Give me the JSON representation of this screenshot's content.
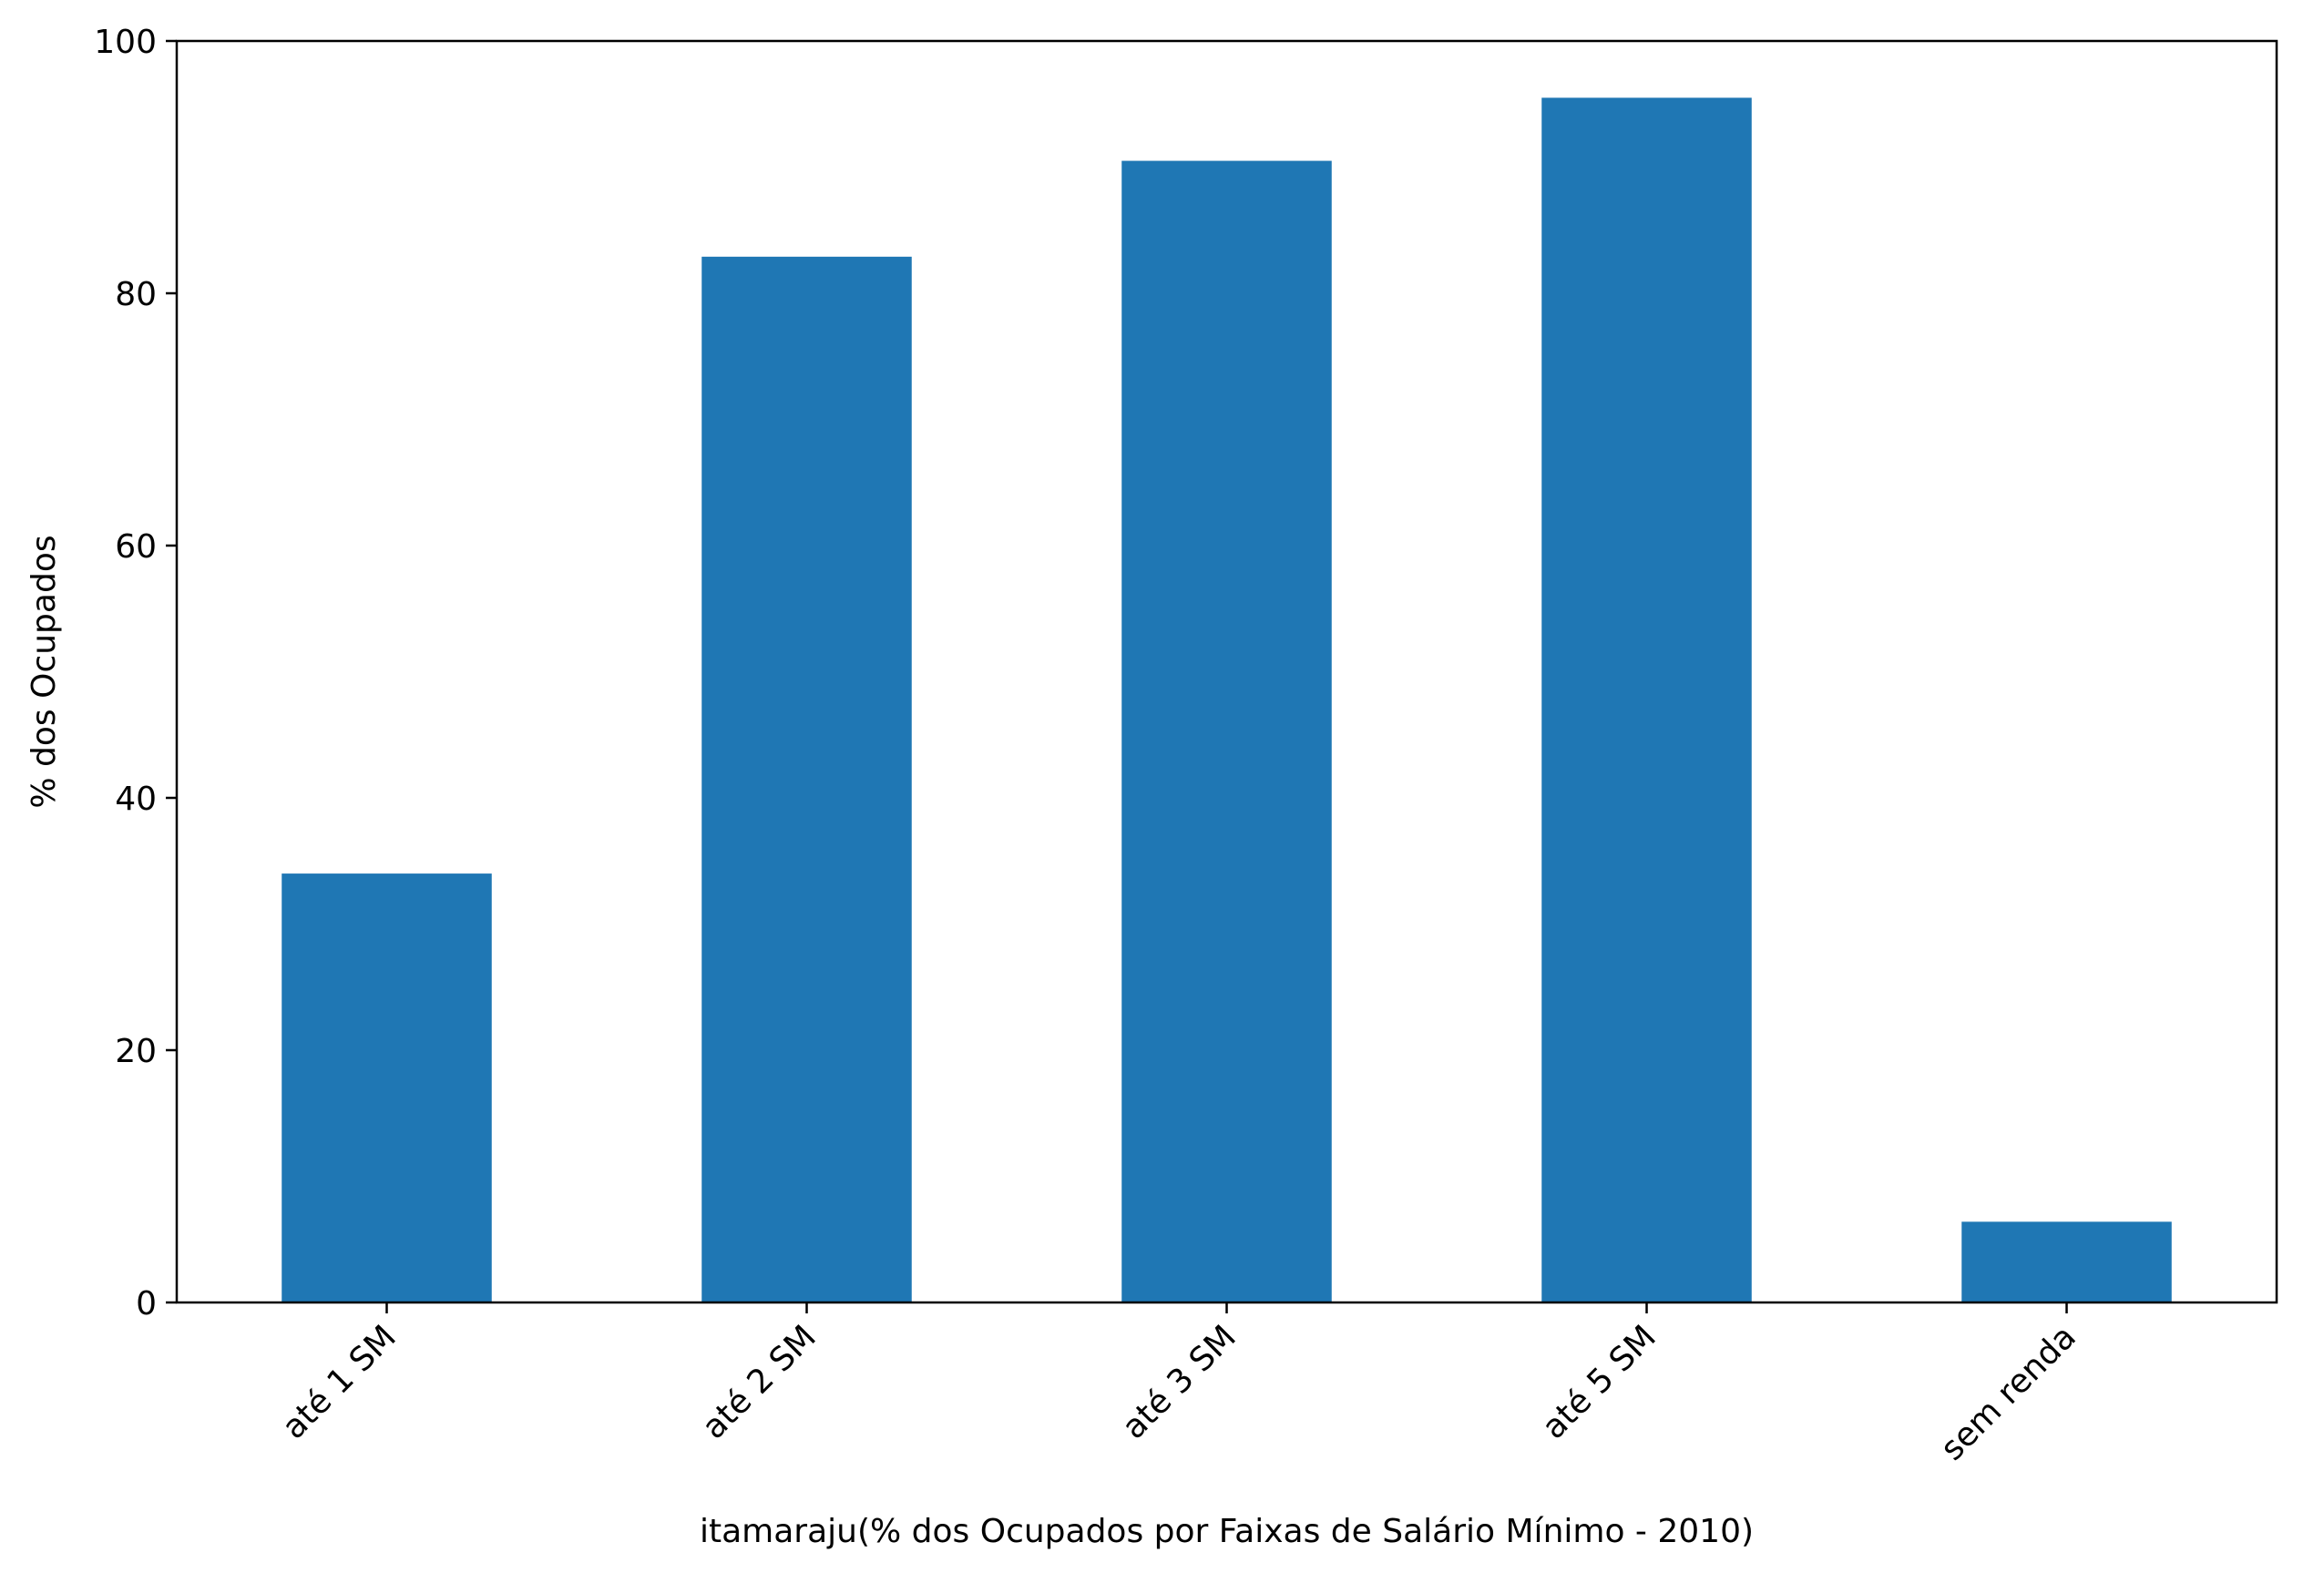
{
  "chart_data": {
    "type": "bar",
    "categories": [
      "até 1 SM",
      "até 2 SM",
      "até 3 SM",
      "até 5 SM",
      "sem renda"
    ],
    "values": [
      34.0,
      82.9,
      90.5,
      95.5,
      6.4
    ],
    "xlabel": "itamaraju(% dos Ocupados por Faixas de Salário Mínimo - 2010)",
    "ylabel": "% dos Ocupados",
    "ylim": [
      0,
      100
    ],
    "yticks": [
      0,
      20,
      40,
      60,
      80,
      100
    ],
    "grid": false,
    "bar_color": "#1f77b4"
  }
}
